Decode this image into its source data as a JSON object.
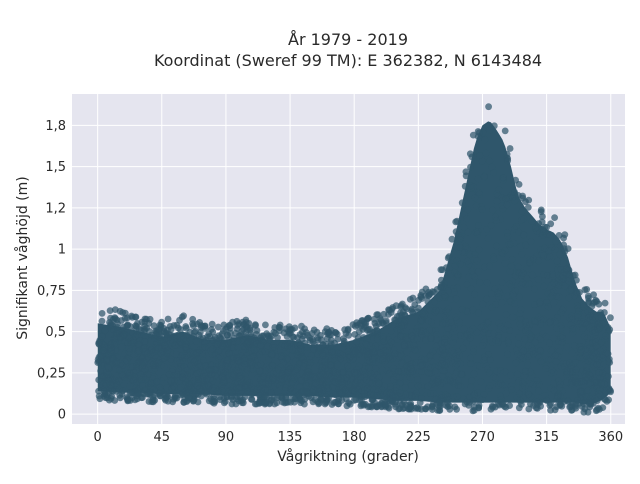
{
  "chart_data": {
    "type": "scatter",
    "title_line1": "År 1979 - 2019",
    "title_line2": "Koordinat (Sweref 99 TM): E 362382, N 6143484",
    "xlabel": "Vågriktning (grader)",
    "ylabel": "Signifikant våghöjd (m)",
    "xlim": [
      -18,
      370
    ],
    "ylim": [
      -0.06,
      1.94
    ],
    "x_ticks": [
      0,
      45,
      90,
      135,
      180,
      225,
      270,
      315,
      360
    ],
    "x_tick_labels": [
      "0",
      "45",
      "90",
      "135",
      "180",
      "225",
      "270",
      "315",
      "360"
    ],
    "y_ticks": [
      0,
      0.25,
      0.5,
      0.75,
      1,
      1.25,
      1.5,
      1.75
    ],
    "y_tick_labels": [
      "0",
      "0,25",
      "0,5",
      "0,75",
      "1",
      "1,2",
      "1,5",
      "1,8"
    ],
    "grid": true,
    "background": "#e5e5ef",
    "marker_color": "#2f566b",
    "envelope": {
      "direction": [
        0,
        15,
        30,
        45,
        60,
        75,
        90,
        105,
        120,
        135,
        150,
        165,
        180,
        195,
        210,
        225,
        240,
        250,
        260,
        265,
        270,
        275,
        280,
        285,
        290,
        295,
        300,
        305,
        310,
        315,
        320,
        325,
        330,
        335,
        340,
        345,
        350,
        355,
        360
      ],
      "height_min": [
        0.09,
        0.08,
        0.08,
        0.07,
        0.07,
        0.07,
        0.06,
        0.06,
        0.06,
        0.06,
        0.06,
        0.05,
        0.05,
        0.04,
        0.03,
        0.03,
        0.02,
        0.02,
        0.02,
        0.02,
        0.02,
        0.02,
        0.02,
        0.02,
        0.02,
        0.02,
        0.02,
        0.02,
        0.02,
        0.02,
        0.02,
        0.02,
        0.02,
        0.02,
        0.01,
        0.01,
        0.02,
        0.04,
        0.08
      ],
      "height_max": [
        0.65,
        0.63,
        0.6,
        0.57,
        0.6,
        0.55,
        0.55,
        0.58,
        0.55,
        0.55,
        0.52,
        0.52,
        0.55,
        0.6,
        0.68,
        0.72,
        0.85,
        1.15,
        1.55,
        1.75,
        1.85,
        1.88,
        1.82,
        1.75,
        1.6,
        1.42,
        1.35,
        1.3,
        1.25,
        1.22,
        1.2,
        1.15,
        1.05,
        0.9,
        0.8,
        0.75,
        0.72,
        0.72,
        0.62
      ]
    }
  }
}
